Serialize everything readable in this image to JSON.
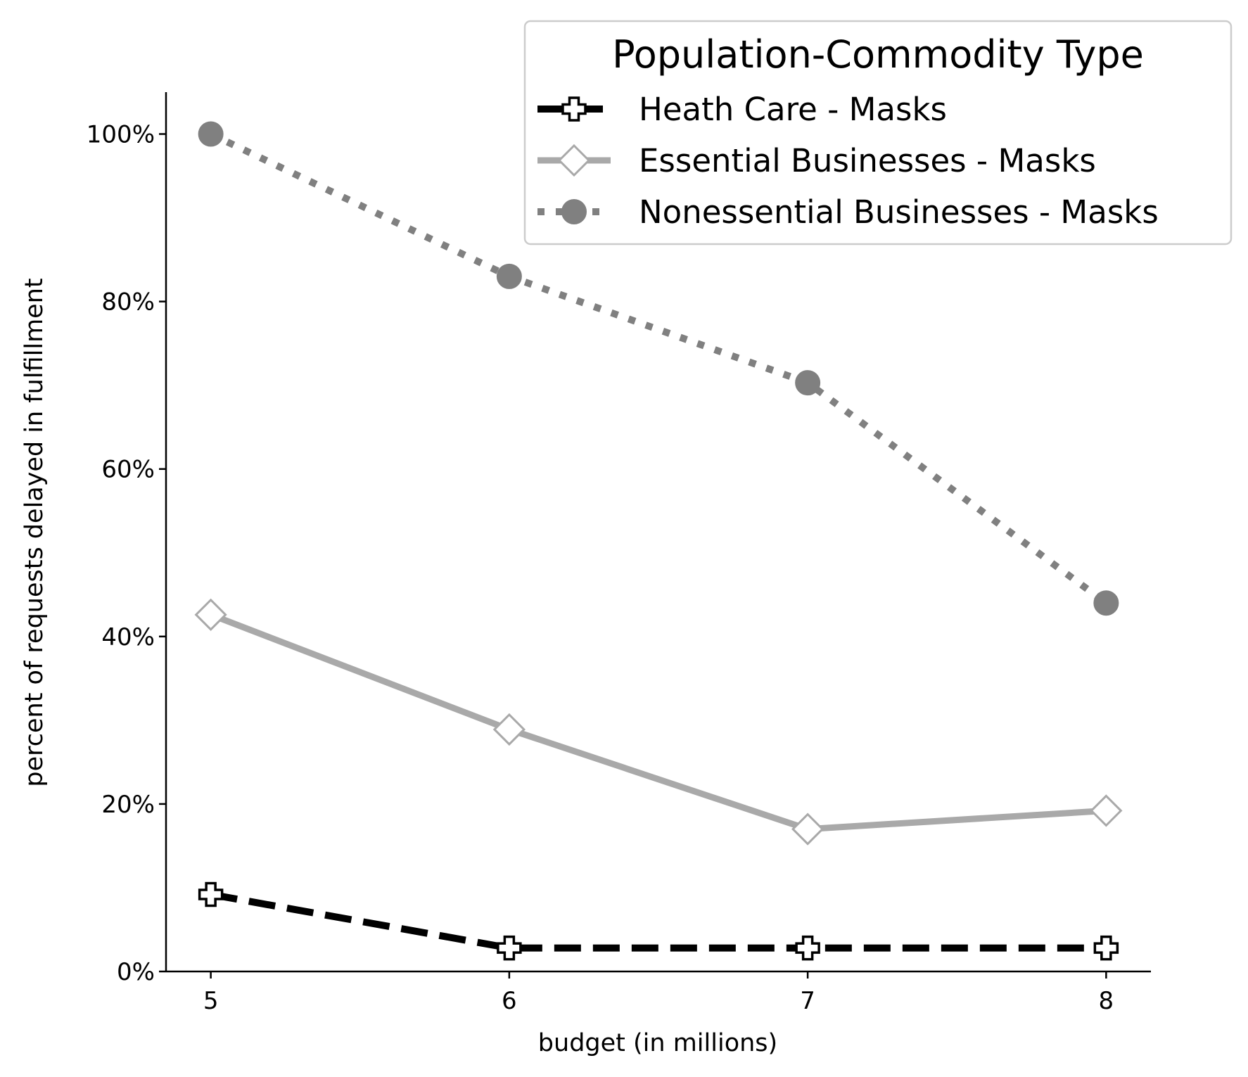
{
  "chart_data": {
    "type": "line",
    "xlabel": "budget (in millions)",
    "ylabel": "percent of requests delayed in fulfillment",
    "x": [
      5,
      6,
      7,
      8
    ],
    "x_ticks": [
      "5",
      "6",
      "7",
      "8"
    ],
    "xlim": [
      4.85,
      8.15
    ],
    "ylim": [
      0,
      105
    ],
    "y_ticks": [
      0,
      20,
      40,
      60,
      80,
      100
    ],
    "y_tick_labels": [
      "0%",
      "20%",
      "40%",
      "60%",
      "80%",
      "100%"
    ],
    "grid": false,
    "legend": {
      "title": "Population-Commodity Type",
      "placement": "top-right"
    },
    "series": [
      {
        "name": "Heath Care - Masks",
        "values": [
          9.2,
          2.8,
          2.8,
          2.8
        ],
        "color": "#000000",
        "line_style": "dashed",
        "marker": "plus",
        "marker_fill": "#ffffff",
        "marker_edge": "#000000"
      },
      {
        "name": "Essential Businesses - Masks",
        "values": [
          42.6,
          28.9,
          17.0,
          19.2
        ],
        "color": "#a9a9a9",
        "line_style": "solid",
        "marker": "diamond",
        "marker_fill": "#ffffff",
        "marker_edge": "#a9a9a9"
      },
      {
        "name": "Nonessential Businesses - Masks",
        "values": [
          100.0,
          83.0,
          70.3,
          44.0
        ],
        "color": "#808080",
        "line_style": "dotted",
        "marker": "circle",
        "marker_fill": "#808080",
        "marker_edge": "#808080"
      }
    ]
  }
}
